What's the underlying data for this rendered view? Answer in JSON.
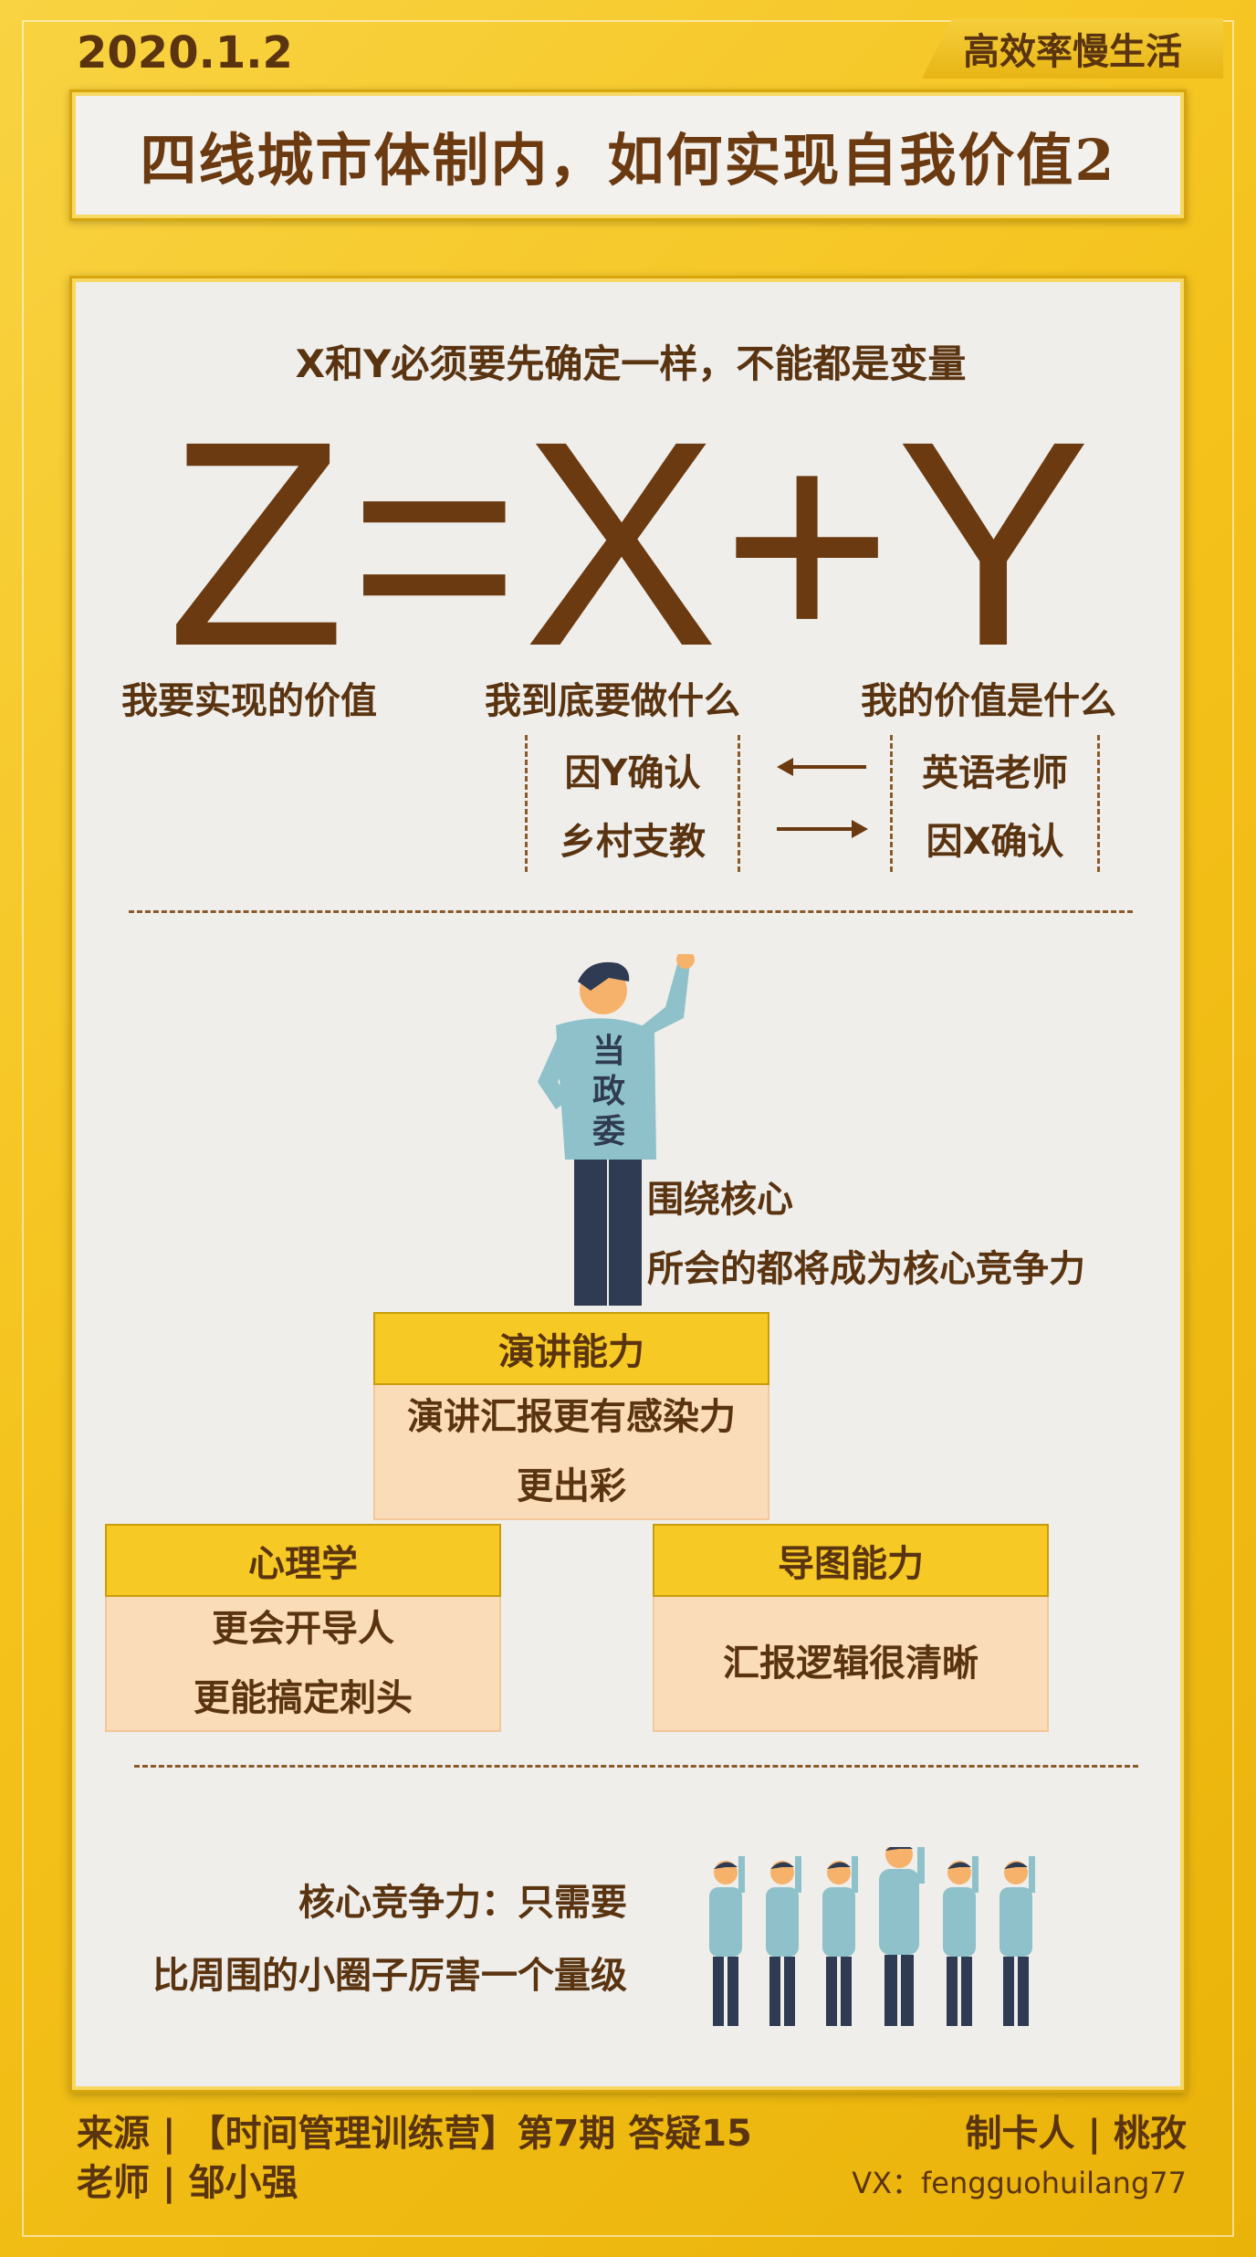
{
  "header": {
    "date": "2020.1.2",
    "brand": "高效率慢生活",
    "title": "四线城市体制内，如何实现自我价值2"
  },
  "formula": {
    "subtitle": "X和Y必须要先确定一样，不能都是变量",
    "equation": "Z=X+Y",
    "label_z": "我要实现的价值",
    "label_x": "我到底要做什么",
    "label_y": "我的价值是什么",
    "x_items": [
      "因Y确认",
      "乡村支教"
    ],
    "y_items": [
      "英语老师",
      "因X确认"
    ]
  },
  "core": {
    "figure_text": "当政委",
    "caption_1": "围绕核心",
    "caption_2": "所会的都将成为核心竞争力"
  },
  "cards": {
    "speech": {
      "title": "演讲能力",
      "line1": "演讲汇报更有感染力",
      "line2": "更出彩"
    },
    "psychology": {
      "title": "心理学",
      "line1": "更会开导人",
      "line2": "更能搞定刺头"
    },
    "mindmap": {
      "title": "导图能力",
      "line1": "汇报逻辑很清晰"
    }
  },
  "competitiveness": {
    "line1": "核心竞争力：只需要",
    "line2": "比周围的小圈子厉害一个量级"
  },
  "footer": {
    "source": "来源 | 【时间管理训练营】第7期  答疑15",
    "teacher": "老师 | 邹小强",
    "maker": "制卡人 | 桃孜",
    "vx": "VX：fengguohuilang77"
  },
  "colors": {
    "accent_yellow": "#f6c924",
    "brown_text": "#6b3a10",
    "card_peach": "#fbdcb8",
    "panel_bg": "#efeeeb"
  }
}
